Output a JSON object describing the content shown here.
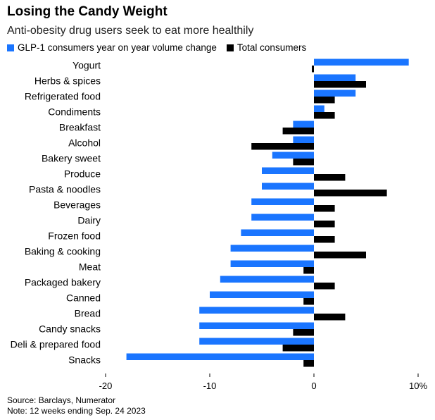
{
  "chart_data": {
    "type": "bar",
    "orientation": "horizontal",
    "title": "Losing the Candy Weight",
    "subtitle": "Anti-obesity drug users seek to eat more healthily",
    "categories": [
      "Yogurt",
      "Herbs & spices",
      "Refrigerated food",
      "Condiments",
      "Breakfast",
      "Alcohol",
      "Bakery sweet",
      "Produce",
      "Pasta & noodles",
      "Beverages",
      "Dairy",
      "Frozen food",
      "Baking & cooking",
      "Meat",
      "Packaged bakery",
      "Canned",
      "Bread",
      "Candy snacks",
      "Deli & prepared food",
      "Snacks"
    ],
    "series": [
      {
        "name": "GLP-1 consumers year on year volume change",
        "color": "#1a75ff",
        "values": [
          9.1,
          4,
          4,
          1,
          -2,
          -2,
          -4,
          -5,
          -5,
          -6,
          -6,
          -7,
          -8,
          -8,
          -9,
          -10,
          -11,
          -11,
          -11,
          -18
        ]
      },
      {
        "name": "Total consumers",
        "color": "#000000",
        "values": [
          -0.2,
          5,
          2,
          2,
          -3,
          -6,
          -2,
          3,
          7,
          2,
          2,
          2,
          5,
          -1,
          2,
          -1,
          3,
          -2,
          -3,
          -1
        ]
      }
    ],
    "xlim": [
      -20,
      10
    ],
    "xticks": [
      -20,
      -10,
      0,
      10
    ],
    "xtick_labels": [
      "-20",
      "-10",
      "0",
      "10%"
    ],
    "grid": false,
    "legend_position": "top-left"
  },
  "footer": {
    "source": "Source: Barclays, Numerator",
    "note": "Note: 12 weeks ending Sep. 24 2023"
  }
}
